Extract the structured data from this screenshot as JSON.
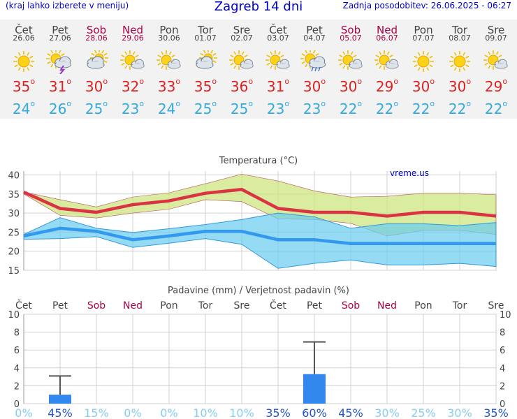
{
  "header": {
    "menu_hint": "(kraj lahko izberete v meniju)",
    "title": "Zagreb 14 dni",
    "updated": "Zadnja posodobitev: 26.06.2025 - 06:27"
  },
  "days": [
    {
      "name": "Čet",
      "date": "26.06",
      "icon": "sun-icon",
      "tmax": "35",
      "tmin": "24",
      "weekend": false
    },
    {
      "name": "Pet",
      "date": "27.06",
      "icon": "sun-cloud-lightning-icon",
      "tmax": "31",
      "tmin": "26",
      "weekend": false
    },
    {
      "name": "Sob",
      "date": "28.06",
      "icon": "partly-cloudy-icon",
      "tmax": "30",
      "tmin": "25",
      "weekend": true
    },
    {
      "name": "Ned",
      "date": "29.06",
      "icon": "sun-small-cloud-icon",
      "tmax": "32",
      "tmin": "23",
      "weekend": true
    },
    {
      "name": "Pon",
      "date": "30.06",
      "icon": "sun-small-cloud-icon",
      "tmax": "33",
      "tmin": "24",
      "weekend": false
    },
    {
      "name": "Tor",
      "date": "01.07",
      "icon": "partly-cloudy-icon",
      "tmax": "35",
      "tmin": "25",
      "weekend": false
    },
    {
      "name": "Sre",
      "date": "02.07",
      "icon": "sun-small-cloud-icon",
      "tmax": "36",
      "tmin": "25",
      "weekend": false
    },
    {
      "name": "Čet",
      "date": "03.07",
      "icon": "sun-small-cloud-icon",
      "tmax": "31",
      "tmin": "23",
      "weekend": false
    },
    {
      "name": "Pet",
      "date": "04.07",
      "icon": "sun-cloud-rain-icon",
      "tmax": "30",
      "tmin": "23",
      "weekend": false
    },
    {
      "name": "Sob",
      "date": "05.07",
      "icon": "sun-small-cloud-icon",
      "tmax": "30",
      "tmin": "22",
      "weekend": true
    },
    {
      "name": "Ned",
      "date": "06.07",
      "icon": "sun-small-cloud-icon",
      "tmax": "29",
      "tmin": "22",
      "weekend": true
    },
    {
      "name": "Pon",
      "date": "07.07",
      "icon": "sun-icon",
      "tmax": "30",
      "tmin": "22",
      "weekend": false
    },
    {
      "name": "Tor",
      "date": "08.07",
      "icon": "sun-icon",
      "tmax": "30",
      "tmin": "22",
      "weekend": false
    },
    {
      "name": "Sre",
      "date": "09.07",
      "icon": "sun-small-cloud-icon",
      "tmax": "29",
      "tmin": "22",
      "weekend": false
    }
  ],
  "colors": {
    "title_blue": "#0000cc",
    "weekend": "#aa0044",
    "tmax_red": "#dd2222",
    "tmin_blue": "#33aadd",
    "tmax_band": "#cce680",
    "tmin_band": "#66ccee",
    "overlap": "#55bb66",
    "precip_bar": "#3388ee",
    "prob_strong": "#2255cc",
    "prob_light": "#88ccee"
  },
  "chart_data": [
    {
      "type": "line",
      "title": "Temperatura (°C)",
      "watermark": "vreme.us",
      "categories": [
        "Čet",
        "Pet",
        "Sob",
        "Ned",
        "Pon",
        "Tor",
        "Sre",
        "Čet",
        "Pet",
        "Sob",
        "Ned",
        "Pon",
        "Tor",
        "Sre"
      ],
      "ylim": [
        15,
        41
      ],
      "yticks": [
        15,
        20,
        25,
        30,
        35,
        40
      ],
      "grid": true,
      "series": [
        {
          "name": "max",
          "values": [
            35.5,
            31.2,
            30.2,
            32.2,
            33.2,
            35.2,
            36.2,
            31.2,
            30.2,
            30.2,
            29.2,
            30.2,
            30.2,
            29.2
          ]
        },
        {
          "name": "max_high",
          "values": [
            35.5,
            33.5,
            31.6,
            34.2,
            35.3,
            37.7,
            40.2,
            38.4,
            35.8,
            34.2,
            34.4,
            35.2,
            35.2,
            34.8
          ]
        },
        {
          "name": "max_low",
          "values": [
            35.0,
            29.4,
            28.7,
            30.0,
            31.0,
            33.5,
            33.0,
            28.5,
            28.3,
            27.3,
            24.0,
            25.5,
            25.5,
            24.4
          ]
        },
        {
          "name": "min",
          "values": [
            24.0,
            26.0,
            25.2,
            23.0,
            24.0,
            25.2,
            25.2,
            23.0,
            23.0,
            22.0,
            22.0,
            22.0,
            22.0,
            22.0
          ]
        },
        {
          "name": "min_high",
          "values": [
            24.4,
            28.8,
            26.0,
            24.9,
            25.9,
            27.0,
            28.3,
            30.0,
            29.0,
            26.0,
            27.2,
            27.2,
            26.7,
            27.5
          ]
        },
        {
          "name": "min_low",
          "values": [
            23.1,
            23.3,
            23.8,
            21.0,
            22.1,
            23.3,
            21.8,
            15.5,
            16.8,
            17.7,
            16.4,
            16.4,
            16.8,
            16.0
          ]
        }
      ]
    },
    {
      "type": "bar",
      "title": "Padavine (mm) / Verjetnost padavin (%)",
      "categories": [
        "Čet",
        "Pet",
        "Sob",
        "Ned",
        "Pon",
        "Tor",
        "Sre",
        "Čet",
        "Pet",
        "Sob",
        "Ned",
        "Pon",
        "Tor",
        "Sre"
      ],
      "ylim": [
        0,
        10
      ],
      "yticks": [
        0,
        2,
        4,
        6,
        8,
        10
      ],
      "values": [
        0,
        1,
        0,
        0,
        0,
        0,
        0,
        0,
        3.3,
        0,
        0,
        0,
        0,
        0
      ],
      "error_high": [
        0,
        3.1,
        0,
        0,
        0,
        0,
        0,
        0,
        6.9,
        0,
        0,
        0,
        0,
        0
      ],
      "probability": [
        "0%",
        "45%",
        "15%",
        "0%",
        "0%",
        "10%",
        "10%",
        "35%",
        "60%",
        "45%",
        "30%",
        "25%",
        "30%",
        "35%"
      ]
    }
  ]
}
